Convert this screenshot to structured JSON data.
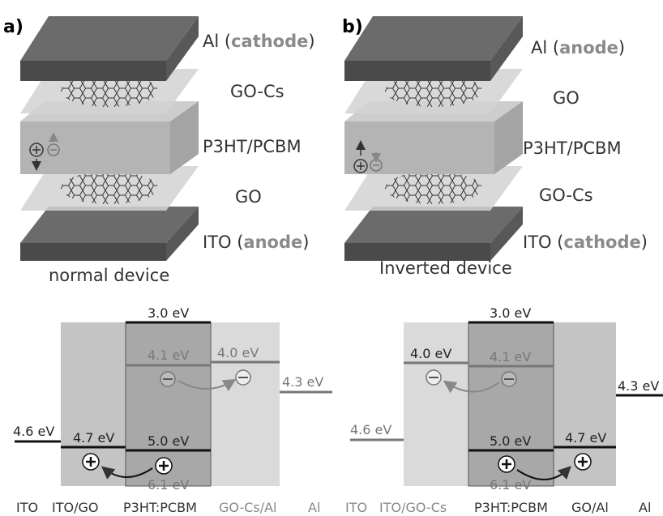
{
  "panel_a": {
    "label": "a)",
    "caption": "normal device",
    "layers": [
      {
        "text": "Al (",
        "highlight": "cathode",
        "suffix": ")"
      },
      {
        "text": "GO-Cs"
      },
      {
        "text": "P3HT/PCBM"
      },
      {
        "text": "GO"
      },
      {
        "text": "ITO (",
        "highlight": "anode",
        "suffix": ")"
      }
    ]
  },
  "panel_b": {
    "label": "b)",
    "caption": "Inverted device",
    "layers": [
      {
        "text": "Al (",
        "highlight": "anode",
        "suffix": ")"
      },
      {
        "text": "GO"
      },
      {
        "text": "P3HT/PCBM"
      },
      {
        "text": "GO-Cs"
      },
      {
        "text": "ITO (",
        "highlight": "cathode",
        "suffix": ")"
      }
    ]
  },
  "diagram_a": {
    "levels": [
      "3.0 eV",
      "4.1 eV",
      "4.0 eV",
      "4.3 eV",
      "4.6 eV",
      "4.7 eV",
      "5.0 eV",
      "6.1 eV"
    ],
    "regions": [
      "ITO",
      "ITO/GO",
      "P3HT:PCBM",
      "GO-Cs/Al",
      "Al"
    ]
  },
  "diagram_b": {
    "levels": [
      "3.0 eV",
      "4.0 eV",
      "4.1 eV",
      "4.3 eV",
      "4.6 eV",
      "5.0 eV",
      "4.7 eV",
      "6.1 eV"
    ],
    "regions": [
      "ITO",
      "ITO/GO-Cs",
      "P3HT:PCBM",
      "GO/Al",
      "Al"
    ]
  }
}
